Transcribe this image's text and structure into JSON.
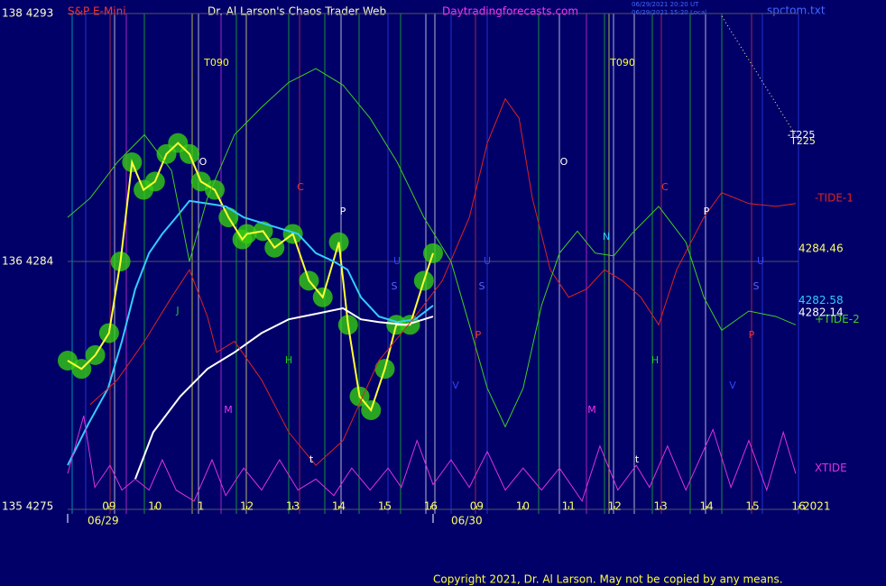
{
  "chart_data": {
    "type": "line",
    "header": [
      "S&P E-Mini",
      "Dr. Al Larson's Chaos Trader Web",
      "Daytradingforecasts.com",
      "spctom.txt",
      "06/29/2021 20:20 UT",
      "06/29/2021 15:20 Local"
    ],
    "copyright": "Copyright 2021, Dr. Al Larson. May not be copied by any means.",
    "year_label": "2021",
    "date_labels": [
      "06/29",
      "06/30"
    ],
    "xlim": [
      -0.9,
      15
    ],
    "xticks": [
      {
        "value": 0,
        "label": "09"
      },
      {
        "value": 1,
        "label": "10"
      },
      {
        "value": 2,
        "label": "1"
      },
      {
        "value": 3,
        "label": "12"
      },
      {
        "value": 4,
        "label": "13"
      },
      {
        "value": 5,
        "label": "14"
      },
      {
        "value": 6,
        "label": "15"
      },
      {
        "value": 7,
        "label": "16"
      },
      {
        "value": 8,
        "label": "09"
      },
      {
        "value": 9,
        "label": "10"
      },
      {
        "value": 10,
        "label": "11"
      },
      {
        "value": 11,
        "label": "12"
      },
      {
        "value": 12,
        "label": "13"
      },
      {
        "value": 13,
        "label": "14"
      },
      {
        "value": 14,
        "label": "15"
      },
      {
        "value": 15,
        "label": "16"
      }
    ],
    "ylim": [
      4275,
      4293
    ],
    "yticks": [
      {
        "value": 4293,
        "label": "138 4293"
      },
      {
        "value": 4284,
        "label": "136 4284"
      },
      {
        "value": 4275,
        "label": "135 4275"
      }
    ],
    "grid": true,
    "series": [
      {
        "color": "#ffff33",
        "bubbles": true,
        "x": [
          -0.9,
          -0.6,
          -0.3,
          0,
          0.25,
          0.5,
          0.75,
          1,
          1.25,
          1.5,
          1.75,
          2,
          2.3,
          2.6,
          2.9,
          3,
          3.35,
          3.6,
          4,
          4.35,
          4.65,
          5,
          5.2,
          5.45,
          5.7,
          6,
          6.25,
          6.55,
          6.85,
          7.05
        ],
        "values": [
          4280.4,
          4280.1,
          4280.6,
          4281.4,
          4284.0,
          4287.6,
          4286.6,
          4286.9,
          4287.9,
          4288.3,
          4287.9,
          4286.9,
          4286.6,
          4285.6,
          4284.8,
          4285.0,
          4285.1,
          4284.5,
          4285.0,
          4283.3,
          4282.7,
          4284.7,
          4281.7,
          4279.1,
          4278.6,
          4280.1,
          4281.7,
          4281.7,
          4283.3,
          4284.3
        ]
      },
      {
        "color": "#33ccff",
        "x": [
          -0.9,
          -0.45,
          -0.02,
          0.28,
          0.57,
          0.87,
          1.16,
          1.46,
          1.75,
          2.14,
          2.54,
          2.93,
          3.52,
          4.11,
          4.5,
          4.89,
          5.19,
          5.48,
          5.87,
          6.27,
          6.66,
          7.05
        ],
        "values": [
          4276.6,
          4278.1,
          4279.4,
          4281.1,
          4283.0,
          4284.3,
          4285.0,
          4285.6,
          4286.2,
          4286.1,
          4286.0,
          4285.6,
          4285.3,
          4285.0,
          4284.3,
          4284.0,
          4283.7,
          4282.7,
          4282.0,
          4281.8,
          4281.9,
          4282.4
        ]
      },
      {
        "color": "#ffffff",
        "x": [
          0.57,
          0.96,
          1.55,
          2.14,
          2.73,
          3.32,
          3.91,
          4.5,
          5.09,
          5.48,
          5.87,
          6.46,
          7.05
        ],
        "values": [
          4276.1,
          4277.8,
          4279.1,
          4280.1,
          4280.7,
          4281.4,
          4281.9,
          4282.1,
          4282.3,
          4281.9,
          4281.8,
          4281.7,
          4282.0
        ]
      },
      {
        "name": "-TIDE-1",
        "color": "#dd2222",
        "x": [
          -0.41,
          0.18,
          0.77,
          1.36,
          1.75,
          2.14,
          2.34,
          2.73,
          3.32,
          3.91,
          4.5,
          5.09,
          5.87,
          6.66,
          7.25,
          7.84,
          8.23,
          8.62,
          8.92,
          9.21,
          9.6,
          10.0,
          10.39,
          10.78,
          11.17,
          11.57,
          11.96,
          12.35,
          12.94,
          13.33,
          13.92,
          14.51,
          14.94
        ],
        "values": [
          4278.8,
          4279.7,
          4281.1,
          4282.7,
          4283.7,
          4282.0,
          4280.7,
          4281.1,
          4279.7,
          4277.8,
          4276.6,
          4277.5,
          4280.4,
          4282.0,
          4283.3,
          4285.6,
          4288.3,
          4289.9,
          4289.2,
          4286.3,
          4283.7,
          4282.7,
          4283.0,
          4283.7,
          4283.3,
          4282.7,
          4281.7,
          4283.7,
          4285.6,
          4286.5,
          4286.1,
          4286.0,
          4286.1
        ]
      },
      {
        "name": "+TIDE-2",
        "color": "#44cc22",
        "x": [
          -0.9,
          -0.41,
          0.18,
          0.77,
          1.36,
          1.75,
          2.14,
          2.73,
          3.32,
          3.91,
          4.5,
          5.09,
          5.68,
          6.27,
          6.85,
          7.44,
          7.84,
          8.23,
          8.62,
          9.01,
          9.41,
          9.8,
          10.19,
          10.58,
          10.98,
          11.37,
          11.96,
          12.55,
          12.94,
          13.33,
          13.92,
          14.51,
          14.94
        ],
        "values": [
          4285.6,
          4286.3,
          4287.6,
          4288.6,
          4287.3,
          4284.0,
          4286.3,
          4288.6,
          4289.6,
          4290.5,
          4291.0,
          4290.4,
          4289.2,
          4287.6,
          4285.6,
          4284.0,
          4281.7,
          4279.4,
          4278.0,
          4279.4,
          4282.4,
          4284.3,
          4285.1,
          4284.3,
          4284.2,
          4285.0,
          4286.0,
          4284.7,
          4282.7,
          4281.5,
          4282.2,
          4282.0,
          4281.7
        ]
      },
      {
        "name": "XTIDE",
        "color": "#dd33dd",
        "x": [
          -0.9,
          -0.55,
          -0.31,
          0.02,
          0.28,
          0.57,
          0.87,
          1.16,
          1.46,
          1.85,
          2.24,
          2.54,
          2.93,
          3.32,
          3.71,
          4.11,
          4.5,
          4.89,
          5.28,
          5.68,
          6.07,
          6.36,
          6.7,
          7.05,
          7.44,
          7.84,
          8.23,
          8.62,
          9.01,
          9.41,
          9.8,
          10.29,
          10.68,
          11.07,
          11.47,
          11.76,
          12.15,
          12.55,
          13.14,
          13.53,
          13.92,
          14.31,
          14.67,
          14.94
        ],
        "values": [
          4276.3,
          4278.4,
          4275.8,
          4276.6,
          4275.7,
          4276.1,
          4275.7,
          4276.8,
          4275.7,
          4275.3,
          4276.8,
          4275.5,
          4276.5,
          4275.7,
          4276.8,
          4275.7,
          4276.1,
          4275.5,
          4276.5,
          4275.7,
          4276.5,
          4275.8,
          4277.5,
          4275.9,
          4276.8,
          4275.8,
          4277.1,
          4275.7,
          4276.5,
          4275.7,
          4276.5,
          4275.3,
          4277.3,
          4275.7,
          4276.6,
          4275.8,
          4277.3,
          4275.7,
          4277.9,
          4275.8,
          4277.5,
          4275.7,
          4277.8,
          4276.3
        ]
      }
    ],
    "last_values": [
      {
        "value": 4284.46,
        "label": "4284.46"
      },
      {
        "value": 4282.58,
        "label": "4282.58"
      },
      {
        "value": 4282.14,
        "label": "4282.14"
      }
    ],
    "markers": [
      "T090",
      "T090",
      "O",
      "O",
      "C",
      "C",
      "P",
      "P",
      "N",
      "U",
      "U",
      "U",
      "S",
      "S",
      "S",
      "J",
      "H",
      "H",
      "P",
      "P",
      "V",
      "V",
      "M",
      "M",
      "t",
      "t",
      "-T225",
      "T225"
    ]
  }
}
